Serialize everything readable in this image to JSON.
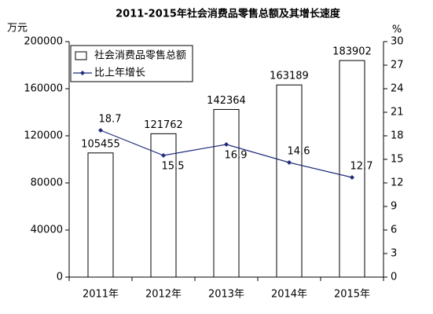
{
  "chart_data": {
    "type": "combo",
    "title": "2011-2015年社会消费品零售总额及其增长速度",
    "y_label": "万元",
    "y2_label": "%",
    "categories": [
      "2011年",
      "2012年",
      "2013年",
      "2014年",
      "2015年"
    ],
    "series": [
      {
        "name": "社会消费品零售总额",
        "type": "bar",
        "color": "#ffffff",
        "values": [
          105455,
          121762,
          142364,
          163189,
          183902
        ]
      },
      {
        "name": "比上年增长",
        "type": "line",
        "axis": "y2",
        "color": "#1f2a7a",
        "values": [
          18.7,
          15.5,
          16.9,
          14.6,
          12.7
        ]
      }
    ],
    "ylim": [
      0,
      200000
    ],
    "yticks": [
      0,
      40000,
      80000,
      120000,
      160000,
      200000
    ],
    "y2lim": [
      0,
      30
    ],
    "y2ticks": [
      0,
      3,
      6,
      9,
      12,
      15,
      18,
      21,
      24,
      27,
      30
    ],
    "legend": "top-left"
  }
}
